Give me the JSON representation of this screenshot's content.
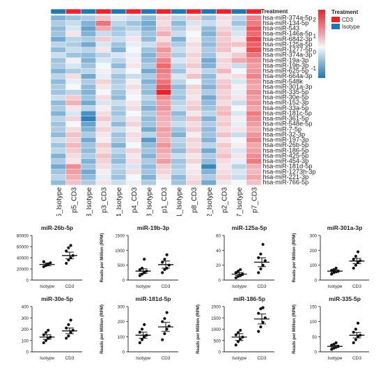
{
  "heatmap": {
    "treatment_title": "Treatment",
    "legend_title": "Treatment",
    "legend_items": [
      {
        "label": "CD3",
        "color": "#e8232b"
      },
      {
        "label": "Isotype",
        "color": "#1f78b4"
      }
    ],
    "colorbar_ticks": [
      "2",
      "1",
      "0",
      "-1"
    ],
    "colorbar_values": [
      2,
      1,
      0,
      -1
    ],
    "colorbar_range": [
      -1.6,
      2.6
    ],
    "colors": {
      "low": "#1f77b4",
      "mid": "#f4f7fb",
      "high": "#e8232b",
      "cd3": "#e8232b",
      "isotype": "#1f78b4"
    }
  },
  "chart_data": [
    {
      "type": "heatmap",
      "columns": [
        "p5_Isotype",
        "p5_CD3",
        "p3_Isotype",
        "p3_CD3",
        "p4_Isotype",
        "p4_CD3",
        "p8_Isotype",
        "p1_CD3",
        "p1_Isotype",
        "p8_CD3",
        "p2_Isotype",
        "p2_CD3",
        "p7_Isotype",
        "p7_CD3"
      ],
      "column_treatment": [
        "Isotype",
        "CD3",
        "Isotype",
        "CD3",
        "Isotype",
        "CD3",
        "Isotype",
        "CD3",
        "Isotype",
        "CD3",
        "Isotype",
        "CD3",
        "Isotype",
        "CD3"
      ],
      "rows": [
        "hsa-miR-374a-5p",
        "hsa-miR-134-5p",
        "hsa-miR-543",
        "hsa-miR-146a-5p",
        "hsa-miR-6842-3p",
        "hsa-miR-125a-5p",
        "hsa-miR-1277-5p",
        "hsa-miR-374a-3p",
        "hsa-miR-19a-3p",
        "hsa-miR-19b-3p",
        "hsa-miR-625-5p",
        "hsa-miR-664a-3p",
        "hsa-miR-548k",
        "hsa-miR-301a-3p",
        "hsa-miR-335-5p",
        "hsa-miR-30e-5p",
        "hsa-miR-152-3p",
        "hsa-miR-33a-5p",
        "hsa-miR-181c-5p",
        "hsa-miR-361-5p",
        "hsa-miR-548e-5p",
        "hsa-miR-7-5p",
        "hsa-miR-32-3p",
        "hsa-miR-197-3p",
        "hsa-miR-26b-5p",
        "hsa-miR-186-5p",
        "hsa-miR-425-5p",
        "hsa-miR-454-3p",
        "hsa-miR-181d-5p",
        "hsa-miR-1273h-3p",
        "hsa-miR-221-3p",
        "hsa-miR-766-5p"
      ],
      "values": [
        [
          -0.8,
          -0.6,
          -0.5,
          0.6,
          -0.2,
          -0.3,
          -0.7,
          0.4,
          -0.4,
          0.5,
          -0.6,
          0.3,
          -0.4,
          1.3
        ],
        [
          -0.5,
          -0.3,
          -0.8,
          1.5,
          -0.4,
          -0.6,
          -0.9,
          0.3,
          -0.7,
          -0.2,
          -0.3,
          0.2,
          -0.6,
          1.4
        ],
        [
          -0.7,
          -0.2,
          -1.0,
          0.9,
          -0.6,
          -0.4,
          -0.8,
          0.5,
          -0.5,
          0.2,
          -0.7,
          0.4,
          -0.3,
          1.8
        ],
        [
          -0.6,
          0.2,
          -0.8,
          -0.3,
          -0.5,
          -0.2,
          -0.6,
          0.8,
          -0.3,
          0.0,
          -0.8,
          0.6,
          -0.2,
          1.6
        ],
        [
          -0.9,
          -0.4,
          -0.5,
          0.5,
          -0.3,
          0.2,
          -0.7,
          0.3,
          -0.8,
          0.1,
          -0.6,
          0.5,
          0.2,
          2.0
        ],
        [
          -0.4,
          -0.5,
          -0.9,
          -0.2,
          -0.6,
          -0.1,
          -0.3,
          0.7,
          -0.5,
          0.3,
          -0.7,
          0.6,
          0.6,
          1.7
        ],
        [
          -0.7,
          -0.3,
          -0.4,
          0.2,
          -0.8,
          0.0,
          -0.6,
          1.1,
          -0.3,
          0.2,
          -0.5,
          0.6,
          0.1,
          1.9
        ],
        [
          -0.3,
          -0.6,
          -0.7,
          -0.4,
          -0.2,
          -0.1,
          -0.8,
          0.9,
          -0.5,
          0.4,
          -0.6,
          0.2,
          0.5,
          1.5
        ],
        [
          -0.6,
          0.1,
          -0.8,
          -0.2,
          -0.4,
          0.1,
          -0.7,
          1.3,
          -0.2,
          0.3,
          -0.9,
          0.4,
          0.9,
          1.2
        ],
        [
          -0.5,
          -0.2,
          -0.6,
          0.0,
          -0.7,
          0.2,
          -0.5,
          1.6,
          -0.4,
          0.5,
          -0.8,
          0.3,
          -0.3,
          1.0
        ],
        [
          -0.8,
          -0.5,
          -0.4,
          0.1,
          -0.3,
          0.0,
          -0.9,
          1.4,
          -0.6,
          0.2,
          -0.4,
          0.7,
          0.0,
          1.1
        ],
        [
          -0.4,
          0.3,
          -0.9,
          -0.1,
          -0.6,
          -0.3,
          -0.5,
          1.2,
          -0.2,
          0.6,
          -0.7,
          0.2,
          0.3,
          1.3
        ],
        [
          -0.7,
          -0.1,
          -0.5,
          0.4,
          -0.5,
          0.1,
          -0.8,
          1.5,
          -0.4,
          0.0,
          -0.6,
          0.5,
          -0.2,
          1.0
        ],
        [
          -0.5,
          0.0,
          -0.7,
          0.2,
          -0.4,
          0.3,
          -0.6,
          1.8,
          -0.7,
          0.4,
          -0.8,
          0.6,
          0.1,
          0.9
        ],
        [
          -0.6,
          -0.4,
          -0.8,
          0.0,
          -0.6,
          0.1,
          -0.7,
          2.4,
          -0.5,
          0.3,
          -0.5,
          0.4,
          -0.1,
          1.2
        ],
        [
          -0.3,
          0.5,
          -0.6,
          0.3,
          -0.7,
          0.0,
          -0.4,
          1.2,
          -0.6,
          0.2,
          -0.9,
          0.5,
          0.2,
          1.0
        ],
        [
          -0.7,
          0.8,
          -0.9,
          -0.2,
          -0.3,
          0.2,
          -0.6,
          1.0,
          -0.4,
          0.4,
          -0.7,
          0.3,
          -0.3,
          1.1
        ],
        [
          -0.5,
          0.2,
          -0.4,
          0.1,
          -0.5,
          0.3,
          -0.8,
          1.1,
          -0.3,
          0.5,
          -0.6,
          0.6,
          0.0,
          0.9
        ],
        [
          -0.8,
          -0.2,
          -1.2,
          0.3,
          -0.6,
          0.0,
          -0.5,
          0.9,
          -0.7,
          0.2,
          -0.4,
          0.7,
          -0.2,
          1.4
        ],
        [
          -0.4,
          0.4,
          -1.4,
          0.5,
          -0.4,
          0.2,
          -0.7,
          0.8,
          -0.5,
          0.6,
          -0.8,
          0.4,
          0.1,
          1.2
        ],
        [
          -0.6,
          0.0,
          -1.0,
          0.2,
          -0.7,
          0.4,
          -0.6,
          0.7,
          -0.3,
          0.3,
          -0.5,
          0.5,
          -0.1,
          1.0
        ],
        [
          -0.5,
          0.3,
          -0.8,
          0.4,
          -0.3,
          0.1,
          -0.9,
          1.0,
          -0.6,
          0.5,
          -0.7,
          0.3,
          0.2,
          0.8
        ],
        [
          -0.7,
          0.6,
          -0.5,
          0.2,
          -0.6,
          0.3,
          -0.4,
          0.9,
          -0.8,
          0.1,
          -0.6,
          0.6,
          -0.3,
          1.1
        ],
        [
          -0.3,
          0.4,
          -0.9,
          0.1,
          -0.5,
          0.2,
          -1.1,
          0.8,
          -0.4,
          0.4,
          -0.8,
          0.2,
          0.0,
          1.3
        ],
        [
          -0.6,
          0.7,
          -0.6,
          0.5,
          -0.8,
          0.0,
          -0.7,
          1.1,
          -0.5,
          0.3,
          -0.4,
          0.5,
          0.1,
          0.9
        ],
        [
          -0.4,
          0.5,
          -0.7,
          0.3,
          -0.4,
          0.4,
          -0.6,
          0.9,
          -0.7,
          0.5,
          -0.9,
          0.4,
          -0.2,
          1.0
        ],
        [
          -0.8,
          0.3,
          -0.5,
          0.6,
          -0.6,
          0.2,
          -0.8,
          0.7,
          -0.3,
          0.2,
          -0.5,
          0.6,
          0.2,
          1.2
        ],
        [
          -0.5,
          0.2,
          -0.8,
          0.4,
          -0.7,
          0.3,
          -0.5,
          1.0,
          -0.6,
          0.4,
          -0.7,
          0.3,
          -0.1,
          1.4
        ],
        [
          -0.9,
          1.2,
          -0.6,
          0.3,
          -0.4,
          -0.2,
          -0.7,
          0.5,
          -0.5,
          0.1,
          -1.3,
          0.2,
          -0.4,
          0.8
        ],
        [
          -0.6,
          1.0,
          -0.9,
          0.1,
          -0.5,
          0.3,
          -0.6,
          0.4,
          -0.4,
          0.2,
          -0.8,
          0.3,
          -0.2,
          0.7
        ],
        [
          -0.4,
          0.8,
          -0.7,
          -0.1,
          -0.6,
          0.0,
          -0.8,
          0.2,
          -0.7,
          0.3,
          -0.5,
          0.4,
          -0.3,
          0.9
        ],
        [
          -0.7,
          0.6,
          -0.5,
          0.2,
          -0.3,
          0.1,
          -0.5,
          0.0,
          -0.6,
          0.4,
          -0.9,
          0.2,
          0.0,
          0.6
        ]
      ]
    },
    {
      "type": "scatter",
      "title": "miR-26b-5p",
      "ylabel": "",
      "categories": [
        "Isotype",
        "CD3"
      ],
      "ylim": [
        0,
        80000
      ],
      "yticks": [
        0,
        20000,
        40000,
        60000,
        80000
      ],
      "mean": [
        28000,
        44000
      ],
      "sem": [
        2500,
        6000
      ],
      "points": [
        [
          24000,
          27000,
          29000,
          31000,
          33000,
          26000,
          28000
        ],
        [
          30000,
          36000,
          40000,
          44000,
          52000,
          58000,
          62000
        ]
      ]
    },
    {
      "type": "scatter",
      "title": "miR-19b-3p",
      "ylabel": "Reads per Million (RPM)",
      "categories": [
        "Isotype",
        "CD3"
      ],
      "ylim": [
        0,
        1500
      ],
      "yticks": [
        0,
        500,
        1000,
        1500
      ],
      "mean": [
        300,
        520
      ],
      "sem": [
        80,
        120
      ],
      "points": [
        [
          150,
          200,
          250,
          300,
          350,
          400,
          700
        ],
        [
          250,
          350,
          400,
          500,
          600,
          700,
          850
        ]
      ]
    },
    {
      "type": "scatter",
      "title": "miR-125a-5p",
      "ylabel": "",
      "categories": [
        "Isotype",
        "CD3"
      ],
      "ylim": [
        0,
        60
      ],
      "yticks": [
        0,
        20,
        40,
        60
      ],
      "mean": [
        8,
        24
      ],
      "sem": [
        2,
        6
      ],
      "points": [
        [
          3,
          5,
          6,
          8,
          10,
          12,
          14
        ],
        [
          10,
          15,
          20,
          26,
          30,
          35,
          48
        ]
      ]
    },
    {
      "type": "scatter",
      "title": "miR-301a-3p",
      "ylabel": "Reads per Million (RPM)",
      "categories": [
        "Isotype",
        "CD3"
      ],
      "ylim": [
        0,
        300
      ],
      "yticks": [
        0,
        100,
        200,
        300
      ],
      "mean": [
        60,
        128
      ],
      "sem": [
        8,
        18
      ],
      "points": [
        [
          40,
          50,
          55,
          60,
          65,
          70,
          80
        ],
        [
          80,
          100,
          120,
          130,
          140,
          160,
          190
        ]
      ]
    },
    {
      "type": "scatter",
      "title": "miR-30e-5p",
      "ylabel": "",
      "categories": [
        "Isotype",
        "CD3"
      ],
      "ylim": [
        0,
        400
      ],
      "yticks": [
        0,
        100,
        200,
        300,
        400
      ],
      "mean": [
        130,
        185
      ],
      "sem": [
        20,
        25
      ],
      "points": [
        [
          80,
          100,
          120,
          130,
          150,
          170,
          190
        ],
        [
          120,
          140,
          170,
          190,
          210,
          240,
          280
        ]
      ]
    },
    {
      "type": "scatter",
      "title": "miR-181d-5p",
      "ylabel": "Reads per Million (RPM)",
      "categories": [
        "Isotype",
        "CD3"
      ],
      "ylim": [
        0,
        300
      ],
      "yticks": [
        0,
        100,
        200,
        300
      ],
      "mean": [
        110,
        165
      ],
      "sem": [
        20,
        30
      ],
      "points": [
        [
          60,
          80,
          100,
          110,
          130,
          150,
          180
        ],
        [
          80,
          120,
          150,
          170,
          200,
          220,
          260
        ]
      ]
    },
    {
      "type": "scatter",
      "title": "miR-186-5p",
      "ylabel": "Reads per Million (RPM)",
      "categories": [
        "Isotype",
        "CD3"
      ],
      "ylim": [
        0,
        2000
      ],
      "yticks": [
        0,
        500,
        1000,
        1500,
        2000
      ],
      "mean": [
        650,
        1450
      ],
      "sem": [
        150,
        220
      ],
      "points": [
        [
          300,
          450,
          550,
          650,
          750,
          850,
          950
        ],
        [
          900,
          1100,
          1300,
          1500,
          1700,
          1900,
          1950
        ]
      ]
    },
    {
      "type": "scatter",
      "title": "miR-335-5p",
      "ylabel": "Reads per Million (RPM)",
      "categories": [
        "Isotype",
        "CD3"
      ],
      "ylim": [
        0,
        150
      ],
      "yticks": [
        0,
        50,
        100,
        150
      ],
      "mean": [
        18,
        55
      ],
      "sem": [
        4,
        9
      ],
      "points": [
        [
          8,
          12,
          15,
          18,
          22,
          25,
          30
        ],
        [
          30,
          40,
          50,
          55,
          65,
          75,
          95
        ]
      ]
    }
  ]
}
